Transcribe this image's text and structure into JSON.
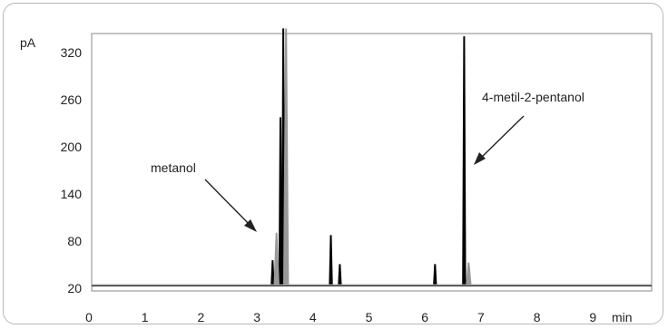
{
  "chart_data": {
    "type": "line",
    "title": "",
    "xlabel": "",
    "ylabel": "",
    "x_unit": "min",
    "y_unit": "pA",
    "xlim": [
      0,
      10
    ],
    "ylim": [
      20,
      350
    ],
    "x_ticks": [
      0,
      1,
      2,
      3,
      4,
      5,
      6,
      7,
      8,
      9
    ],
    "y_ticks": [
      20,
      80,
      140,
      200,
      260,
      320
    ],
    "grid": false,
    "baseline": 23,
    "series": [
      {
        "name": "",
        "color": "#000000",
        "peaks": [
          {
            "rt": 3.28,
            "height": 55
          },
          {
            "rt": 3.42,
            "height": 237
          },
          {
            "rt": 3.47,
            "height": 350
          },
          {
            "rt": 4.32,
            "height": 87
          },
          {
            "rt": 4.48,
            "height": 50
          },
          {
            "rt": 6.18,
            "height": 50
          },
          {
            "rt": 6.7,
            "height": 340
          }
        ]
      },
      {
        "name": "",
        "color": "#999999",
        "peaks": [
          {
            "rt": 3.35,
            "height": 90
          },
          {
            "rt": 3.52,
            "height": 350
          },
          {
            "rt": 6.78,
            "height": 52
          }
        ]
      }
    ],
    "annotations": [
      {
        "text": "metanol",
        "target_rt": 3.0
      },
      {
        "text": "4-metil-2-pentanol",
        "target_rt": 6.7
      }
    ]
  }
}
